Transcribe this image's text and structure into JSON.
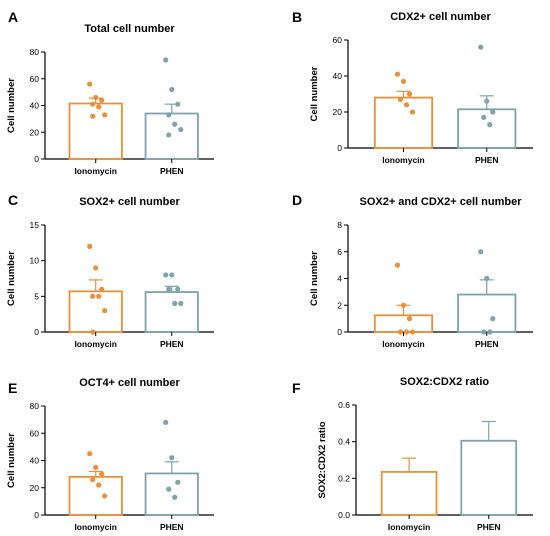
{
  "colors": {
    "ionomycin": "#E8913A",
    "phen": "#7FA3A9",
    "axis": "#000000"
  },
  "chart_data": [
    {
      "panel": "A",
      "type": "bar",
      "title": "Total cell number",
      "ylabel": "Cell number",
      "xlabel": "",
      "categories": [
        "Ionomycin",
        "PHEN"
      ],
      "values": [
        41.5,
        34
      ],
      "errors": [
        4,
        7
      ],
      "points": [
        [
          56,
          46,
          44,
          41,
          39,
          33,
          32
        ],
        [
          74,
          52,
          41,
          33,
          26,
          22,
          18
        ]
      ],
      "ylim": [
        0,
        80
      ],
      "yticks": [
        "0",
        "20",
        "40",
        "60",
        "80"
      ]
    },
    {
      "panel": "B",
      "type": "bar",
      "title": "CDX2+ cell number",
      "ylabel": "Cell number",
      "xlabel": "",
      "categories": [
        "Ionomycin",
        "PHEN"
      ],
      "values": [
        28,
        21.5
      ],
      "errors": [
        3.5,
        7.5
      ],
      "points": [
        [
          41,
          37,
          30,
          27,
          24,
          20
        ],
        [
          56,
          26,
          20,
          17,
          13
        ]
      ],
      "ylim": [
        0,
        60
      ],
      "yticks": [
        "0",
        "20",
        "40",
        "60"
      ]
    },
    {
      "panel": "C",
      "type": "bar",
      "title": "SOX2+ cell number",
      "ylabel": "Cell number",
      "xlabel": "",
      "categories": [
        "Ionomycin",
        "PHEN"
      ],
      "values": [
        5.7,
        5.6
      ],
      "errors": [
        1.6,
        0.8
      ],
      "points": [
        [
          12,
          9,
          6,
          5,
          5,
          3,
          0
        ],
        [
          8,
          8,
          6,
          6,
          4,
          4
        ]
      ],
      "ylim": [
        0,
        15
      ],
      "yticks": [
        "0",
        "5",
        "10",
        "15"
      ]
    },
    {
      "panel": "D",
      "type": "bar",
      "title": "SOX2+ and CDX2+ cell number",
      "ylabel": "Cell number",
      "xlabel": "",
      "categories": [
        "Ionomycin",
        "PHEN"
      ],
      "values": [
        1.25,
        2.8
      ],
      "errors": [
        0.75,
        1.1
      ],
      "points": [
        [
          5,
          2,
          1,
          0,
          0,
          0
        ],
        [
          6,
          4,
          1,
          0,
          0
        ]
      ],
      "ylim": [
        0,
        8
      ],
      "yticks": [
        "0",
        "2",
        "4",
        "6",
        "8"
      ]
    },
    {
      "panel": "E",
      "type": "bar",
      "title": "OCT4+ cell number",
      "ylabel": "Cell number",
      "xlabel": "",
      "categories": [
        "Ionomycin",
        "PHEN"
      ],
      "values": [
        28,
        30.5
      ],
      "errors": [
        4,
        8.5
      ],
      "points": [
        [
          45,
          35,
          30,
          26,
          22,
          14
        ],
        [
          68,
          42,
          24,
          19,
          13
        ]
      ],
      "ylim": [
        0,
        80
      ],
      "yticks": [
        "0",
        "20",
        "40",
        "60",
        "80"
      ]
    },
    {
      "panel": "F",
      "type": "bar",
      "title": "SOX2:CDX2 ratio",
      "ylabel": "SOX2:CDX2 ratio",
      "xlabel": "",
      "categories": [
        "Ionomycin",
        "PHEN"
      ],
      "values": [
        0.235,
        0.405
      ],
      "errors": [
        0.075,
        0.105
      ],
      "points": [
        [],
        []
      ],
      "ylim": [
        0,
        0.6
      ],
      "yticks": [
        "0.0",
        "0.2",
        "0.4",
        "0.6"
      ]
    }
  ]
}
